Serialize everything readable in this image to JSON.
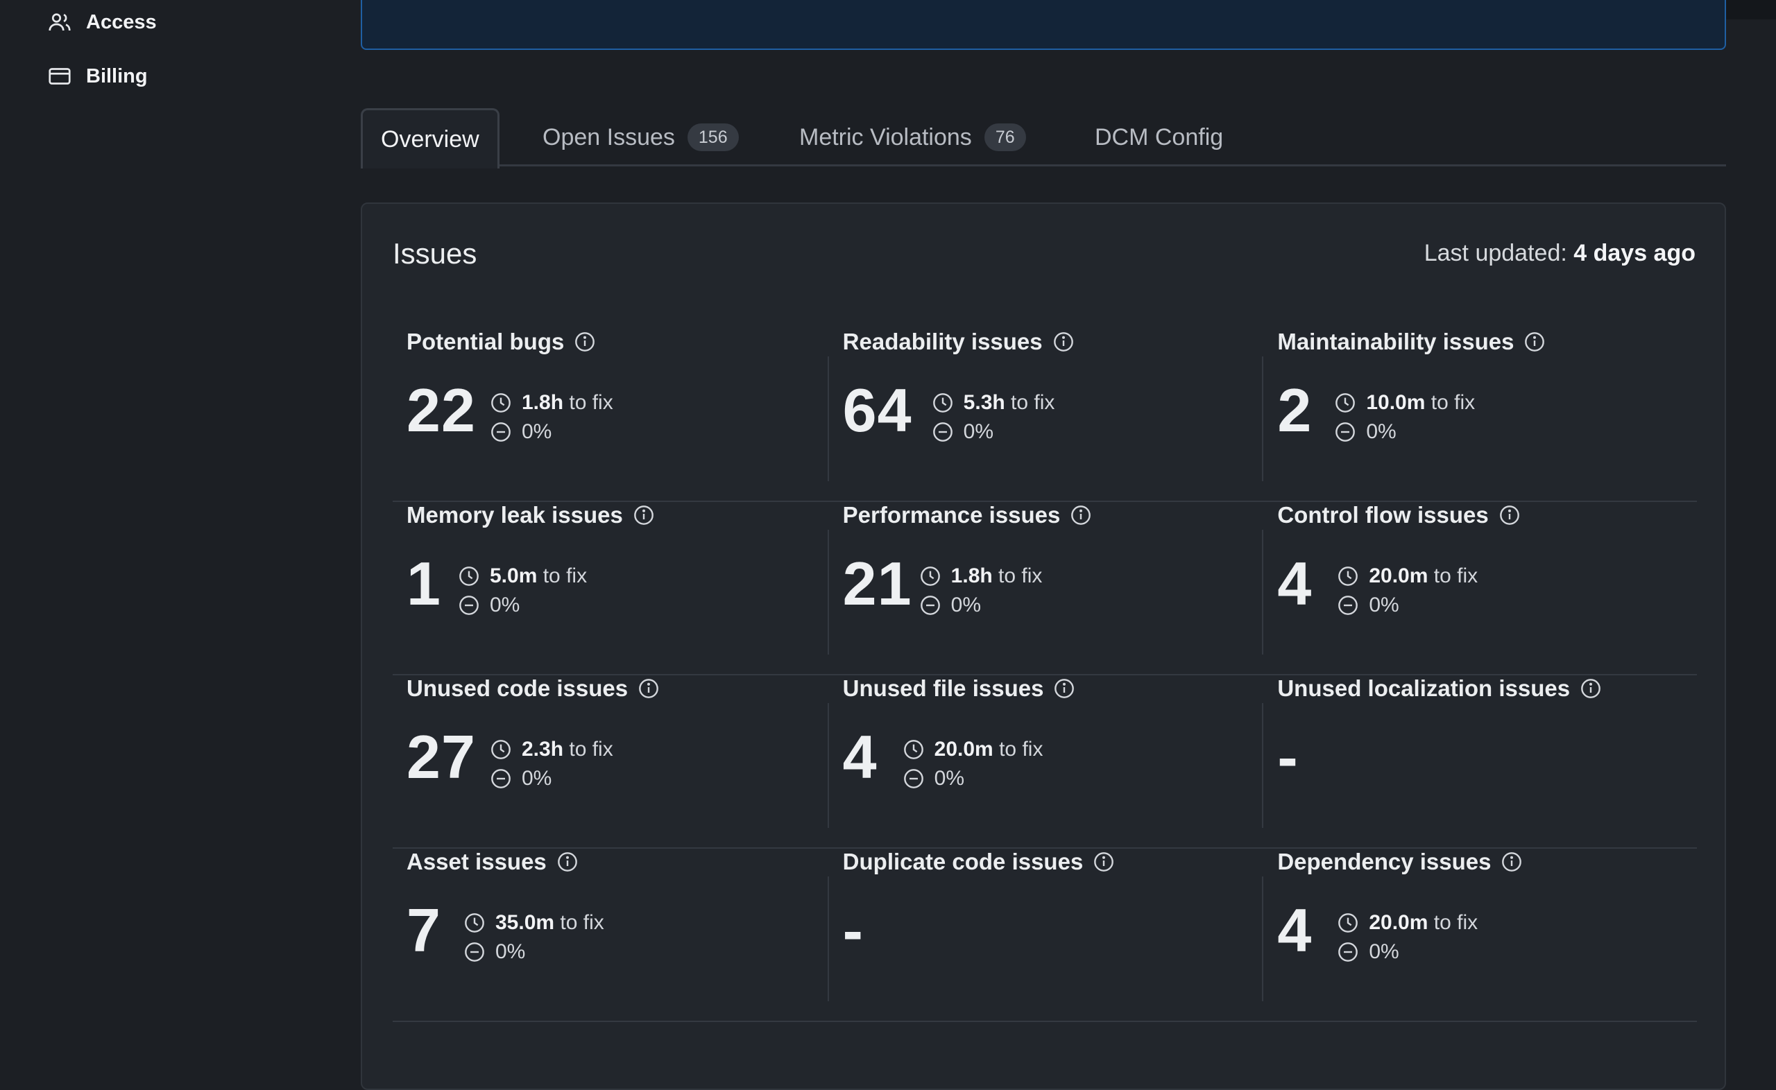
{
  "sidebar": {
    "items": [
      {
        "label": "Access",
        "icon": "users-icon"
      },
      {
        "label": "Billing",
        "icon": "credit-card-icon"
      }
    ]
  },
  "tabs": [
    {
      "label": "Overview",
      "badge": null
    },
    {
      "label": "Open Issues",
      "badge": "156"
    },
    {
      "label": "Metric Violations",
      "badge": "76"
    },
    {
      "label": "DCM Config",
      "badge": null
    }
  ],
  "card": {
    "title": "Issues",
    "updated_label": "Last updated:",
    "updated_value": "4 days ago"
  },
  "issues": [
    {
      "title": "Potential bugs",
      "count": "22",
      "time": "1.8h",
      "time_suffix": " to fix",
      "change": "0%"
    },
    {
      "title": "Readability issues",
      "count": "64",
      "time": "5.3h",
      "time_suffix": " to fix",
      "change": "0%"
    },
    {
      "title": "Maintainability issues",
      "count": "2",
      "time": "10.0m",
      "time_suffix": " to fix",
      "change": "0%"
    },
    {
      "title": "Memory leak issues",
      "count": "1",
      "time": "5.0m",
      "time_suffix": " to fix",
      "change": "0%"
    },
    {
      "title": "Performance issues",
      "count": "21",
      "time": "1.8h",
      "time_suffix": " to fix",
      "change": "0%"
    },
    {
      "title": "Control flow issues",
      "count": "4",
      "time": "20.0m",
      "time_suffix": " to fix",
      "change": "0%"
    },
    {
      "title": "Unused code issues",
      "count": "27",
      "time": "2.3h",
      "time_suffix": " to fix",
      "change": "0%"
    },
    {
      "title": "Unused file issues",
      "count": "4",
      "time": "20.0m",
      "time_suffix": " to fix",
      "change": "0%"
    },
    {
      "title": "Unused localization issues",
      "count": "-",
      "time": null,
      "time_suffix": null,
      "change": null
    },
    {
      "title": "Asset issues",
      "count": "7",
      "time": "35.0m",
      "time_suffix": " to fix",
      "change": "0%"
    },
    {
      "title": "Duplicate code issues",
      "count": "-",
      "time": null,
      "time_suffix": null,
      "change": null
    },
    {
      "title": "Dependency issues",
      "count": "4",
      "time": "20.0m",
      "time_suffix": " to fix",
      "change": "0%"
    }
  ]
}
